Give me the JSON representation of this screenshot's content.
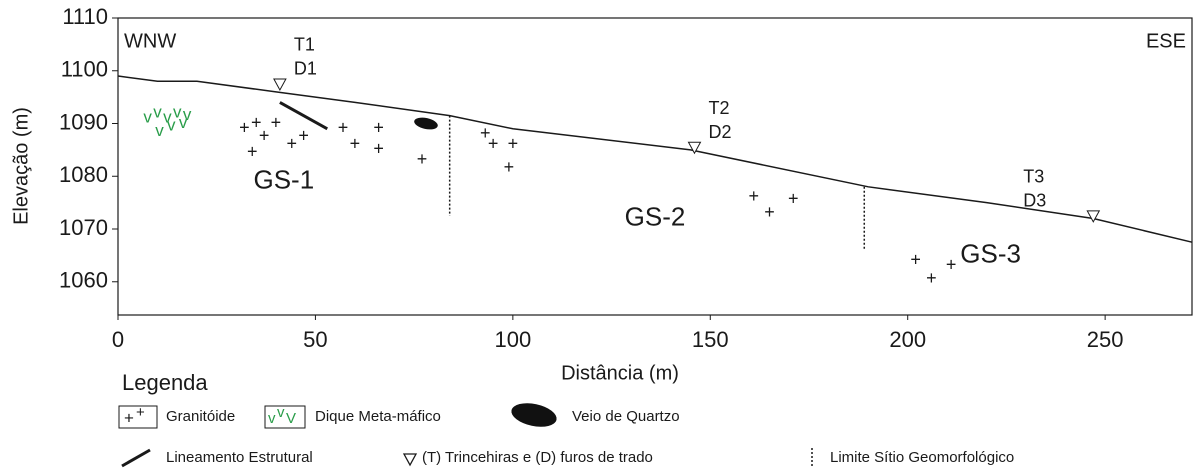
{
  "chart_data": {
    "type": "line",
    "x_label": "Distância (m)",
    "y_label": "Elevação (m)",
    "x": [
      0,
      10,
      20,
      40,
      60,
      84,
      100,
      145,
      190,
      220,
      247,
      272
    ],
    "values": [
      1099,
      1098,
      1098,
      1096,
      1094,
      1091.5,
      1089,
      1085,
      1078,
      1075,
      1072,
      1067.5
    ],
    "color": "#1a1a1a",
    "xlim": [
      0,
      272
    ],
    "ylim": [
      1053.7,
      1110
    ],
    "xticks": [
      0,
      50,
      100,
      150,
      200,
      250
    ],
    "yticks": [
      1060,
      1070,
      1080,
      1090,
      1100,
      1110
    ],
    "corner_labels": [
      "WNW",
      "ESE"
    ],
    "granitoide": {
      "x": [
        32,
        35,
        40,
        37,
        44,
        47,
        34,
        57,
        60,
        66,
        66,
        77,
        93,
        95,
        100,
        99,
        161,
        165,
        171,
        202,
        206,
        211
      ],
      "y": [
        1089,
        1090,
        1090,
        1087.5,
        1086,
        1087.5,
        1084.5,
        1089,
        1086,
        1089,
        1085,
        1083,
        1088,
        1086,
        1086,
        1081.5,
        1076,
        1073,
        1075.5,
        1064,
        1060.5,
        1063
      ]
    },
    "dike": {
      "x": [
        7.5,
        10,
        12.5,
        15,
        17.5,
        10.5,
        13.5,
        16.5
      ],
      "y": [
        1091,
        1092,
        1091,
        1092,
        1091.5,
        1088.5,
        1089.5,
        1090
      ],
      "color": "#2a9d4a"
    },
    "vein": {
      "x": 78,
      "y": 1090
    },
    "lineament": {
      "x": [
        41,
        53
      ],
      "y": [
        1094,
        1089
      ]
    },
    "trenches": [
      {
        "t": "T1",
        "d": "D1",
        "x": 41,
        "y": 1097.5
      },
      {
        "t": "T2",
        "d": "D2",
        "x": 146,
        "y": 1085.5
      },
      {
        "t": "T3",
        "d": "D3",
        "x": 247,
        "y": 1072.5
      }
    ],
    "limits": [
      {
        "x": 84,
        "y": [
          1091.5,
          1072.5
        ]
      },
      {
        "x": 189,
        "y": [
          1078,
          1066
        ]
      }
    ],
    "sites": [
      {
        "text": "GS-1",
        "x": 42,
        "y": 1079
      },
      {
        "text": "GS-2",
        "x": 136,
        "y": 1072
      },
      {
        "text": "GS-3",
        "x": 221,
        "y": 1065
      }
    ],
    "legend": {
      "title": "Legenda",
      "items": [
        "Granitóide",
        "Dique Meta-máfico",
        "Veio de Quartzo",
        "Lineamento Estrutural",
        "(T) Trincehiras e (D) furos de trado",
        "Limite Sítio Geomorfológico"
      ]
    }
  }
}
